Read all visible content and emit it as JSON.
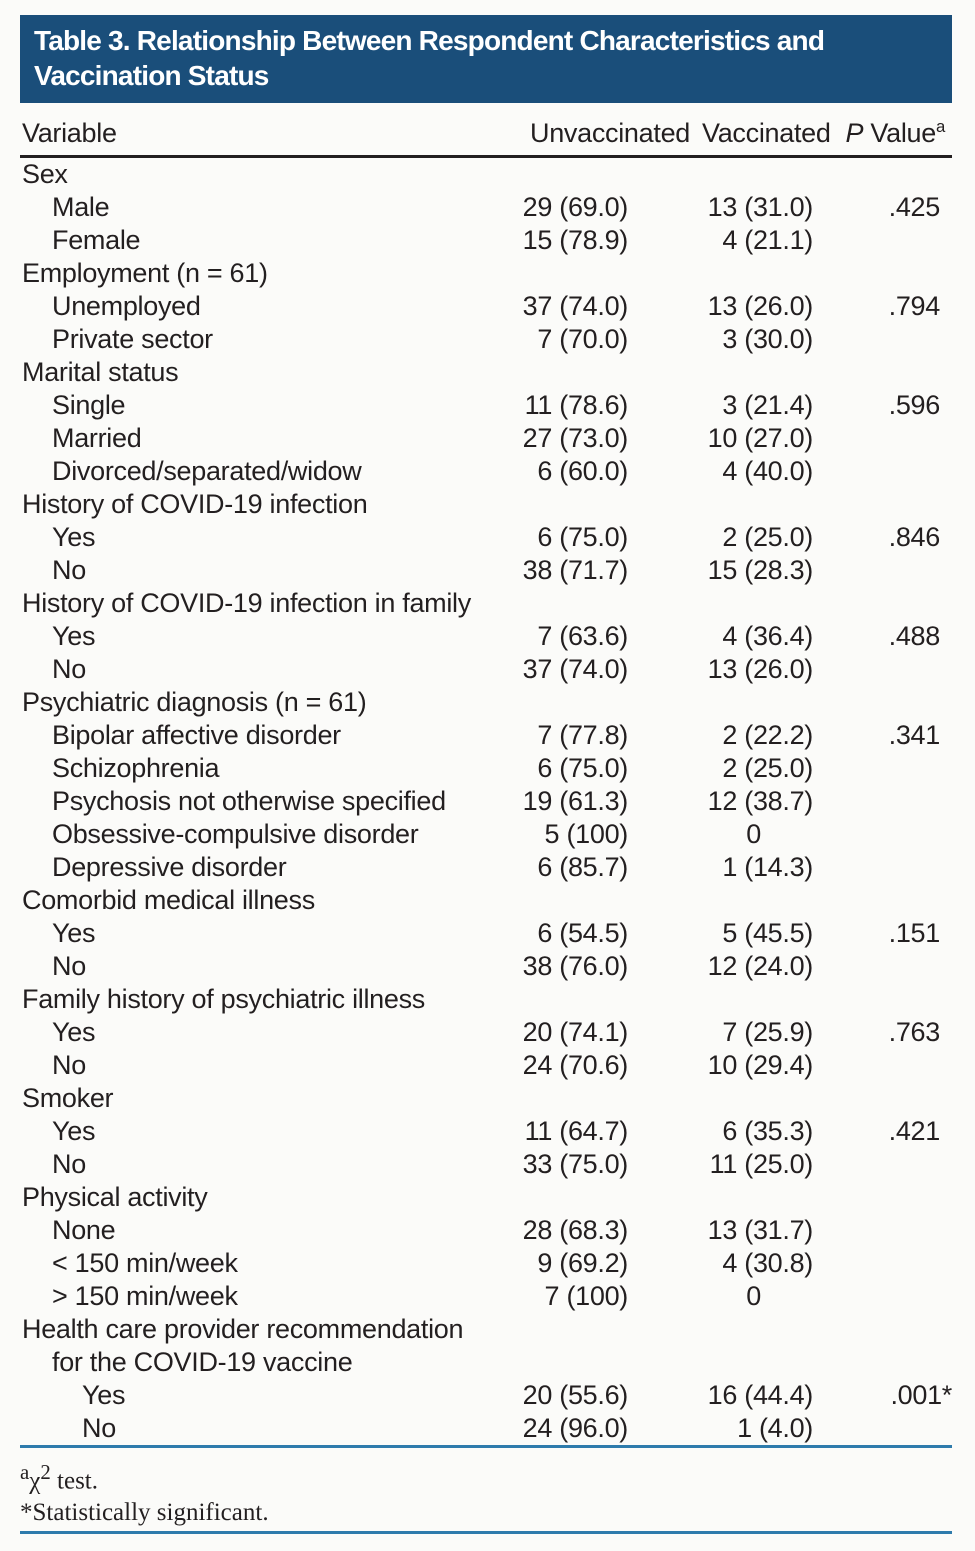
{
  "table": {
    "title_lines": [
      "Table 3. Relationship Between Respondent Characteristics and",
      "Vaccination Status"
    ],
    "columns": {
      "variable": "Variable",
      "unvaccinated": "Unvaccinated",
      "vaccinated": "Vaccinated",
      "p_italic": "P",
      "p_rest": " Value",
      "p_sup": "a"
    },
    "rows": [
      {
        "label": "Sex",
        "indent": 0,
        "unvaccinated": "",
        "vaccinated": "",
        "p_value": ""
      },
      {
        "label": "Male",
        "indent": 1,
        "unvaccinated": "29 (69.0)",
        "vaccinated": "13 (31.0)",
        "p_value": ".425"
      },
      {
        "label": "Female",
        "indent": 1,
        "unvaccinated": "15 (78.9)",
        "vaccinated": "4 (21.1)",
        "p_value": ""
      },
      {
        "label": "Employment (n = 61)",
        "indent": 0,
        "unvaccinated": "",
        "vaccinated": "",
        "p_value": ""
      },
      {
        "label": "Unemployed",
        "indent": 1,
        "unvaccinated": "37 (74.0)",
        "vaccinated": "13 (26.0)",
        "p_value": ".794"
      },
      {
        "label": "Private sector",
        "indent": 1,
        "unvaccinated": "7 (70.0)",
        "vaccinated": "3 (30.0)",
        "p_value": ""
      },
      {
        "label": "Marital status",
        "indent": 0,
        "unvaccinated": "",
        "vaccinated": "",
        "p_value": ""
      },
      {
        "label": "Single",
        "indent": 1,
        "unvaccinated": "11 (78.6)",
        "vaccinated": "3 (21.4)",
        "p_value": ".596"
      },
      {
        "label": "Married",
        "indent": 1,
        "unvaccinated": "27 (73.0)",
        "vaccinated": "10 (27.0)",
        "p_value": ""
      },
      {
        "label": "Divorced/separated/widow",
        "indent": 1,
        "unvaccinated": "6 (60.0)",
        "vaccinated": "4 (40.0)",
        "p_value": ""
      },
      {
        "label": "History of COVID-19 infection",
        "indent": 0,
        "unvaccinated": "",
        "vaccinated": "",
        "p_value": ""
      },
      {
        "label": "Yes",
        "indent": 1,
        "unvaccinated": "6 (75.0)",
        "vaccinated": "2 (25.0)",
        "p_value": ".846"
      },
      {
        "label": "No",
        "indent": 1,
        "unvaccinated": "38 (71.7)",
        "vaccinated": "15 (28.3)",
        "p_value": ""
      },
      {
        "label": "History of COVID-19 infection in family",
        "indent": 0,
        "unvaccinated": "",
        "vaccinated": "",
        "p_value": ""
      },
      {
        "label": "Yes",
        "indent": 1,
        "unvaccinated": "7 (63.6)",
        "vaccinated": "4 (36.4)",
        "p_value": ".488"
      },
      {
        "label": "No",
        "indent": 1,
        "unvaccinated": "37 (74.0)",
        "vaccinated": "13 (26.0)",
        "p_value": ""
      },
      {
        "label": "Psychiatric diagnosis (n = 61)",
        "indent": 0,
        "unvaccinated": "",
        "vaccinated": "",
        "p_value": ""
      },
      {
        "label": "Bipolar affective disorder",
        "indent": 1,
        "unvaccinated": "7 (77.8)",
        "vaccinated": "2 (22.2)",
        "p_value": ".341"
      },
      {
        "label": "Schizophrenia",
        "indent": 1,
        "unvaccinated": "6 (75.0)",
        "vaccinated": "2 (25.0)",
        "p_value": ""
      },
      {
        "label": "Psychosis not otherwise specified",
        "indent": 1,
        "unvaccinated": "19 (61.3)",
        "vaccinated": "12 (38.7)",
        "p_value": ""
      },
      {
        "label": "Obsessive-compulsive disorder",
        "indent": 1,
        "unvaccinated": "5 (100)",
        "vaccinated": "0",
        "p_value": ""
      },
      {
        "label": "Depressive disorder",
        "indent": 1,
        "unvaccinated": "6 (85.7)",
        "vaccinated": "1 (14.3)",
        "p_value": ""
      },
      {
        "label": "Comorbid medical illness",
        "indent": 0,
        "unvaccinated": "",
        "vaccinated": "",
        "p_value": ""
      },
      {
        "label": "Yes",
        "indent": 1,
        "unvaccinated": "6 (54.5)",
        "vaccinated": "5 (45.5)",
        "p_value": ".151"
      },
      {
        "label": "No",
        "indent": 1,
        "unvaccinated": "38 (76.0)",
        "vaccinated": "12 (24.0)",
        "p_value": ""
      },
      {
        "label": "Family history of psychiatric illness",
        "indent": 0,
        "unvaccinated": "",
        "vaccinated": "",
        "p_value": ""
      },
      {
        "label": "Yes",
        "indent": 1,
        "unvaccinated": "20 (74.1)",
        "vaccinated": "7 (25.9)",
        "p_value": ".763"
      },
      {
        "label": "No",
        "indent": 1,
        "unvaccinated": "24 (70.6)",
        "vaccinated": "10 (29.4)",
        "p_value": ""
      },
      {
        "label": "Smoker",
        "indent": 0,
        "unvaccinated": "",
        "vaccinated": "",
        "p_value": ""
      },
      {
        "label": "Yes",
        "indent": 1,
        "unvaccinated": "11 (64.7)",
        "vaccinated": "6 (35.3)",
        "p_value": ".421"
      },
      {
        "label": "No",
        "indent": 1,
        "unvaccinated": "33 (75.0)",
        "vaccinated": "11 (25.0)",
        "p_value": ""
      },
      {
        "label": "Physical activity",
        "indent": 0,
        "unvaccinated": "",
        "vaccinated": "",
        "p_value": ""
      },
      {
        "label": "None",
        "indent": 1,
        "unvaccinated": "28 (68.3)",
        "vaccinated": "13 (31.7)",
        "p_value": ""
      },
      {
        "label": "< 150 min/week",
        "indent": 1,
        "unvaccinated": "9 (69.2)",
        "vaccinated": "4 (30.8)",
        "p_value": ""
      },
      {
        "label": "> 150 min/week",
        "indent": 1,
        "unvaccinated": "7 (100)",
        "vaccinated": "0",
        "p_value": ""
      },
      {
        "label": "Health care provider recommendation",
        "indent": 0,
        "unvaccinated": "",
        "vaccinated": "",
        "p_value": ""
      },
      {
        "label": "for the COVID-19 vaccine",
        "indent": 1,
        "unvaccinated": "",
        "vaccinated": "",
        "p_value": ""
      },
      {
        "label": "Yes",
        "indent": 2,
        "unvaccinated": "20 (55.6)",
        "vaccinated": "16 (44.4)",
        "p_value": ".001*"
      },
      {
        "label": "No",
        "indent": 2,
        "unvaccinated": "24 (96.0)",
        "vaccinated": "1 (4.0)",
        "p_value": ""
      }
    ],
    "footnotes": {
      "chi_sup_a": "a",
      "chi_base": "χ",
      "chi_sup_2": "2",
      "chi_rest": " test.",
      "significance": "*Statistically significant."
    },
    "colors": {
      "header_bg": "#1a4e7a",
      "title_text": "#ffffff",
      "rule_blue": "#2e7bac",
      "rule_black": "#231f20",
      "body_text": "#231f20",
      "background": "#fbfbf9"
    }
  }
}
